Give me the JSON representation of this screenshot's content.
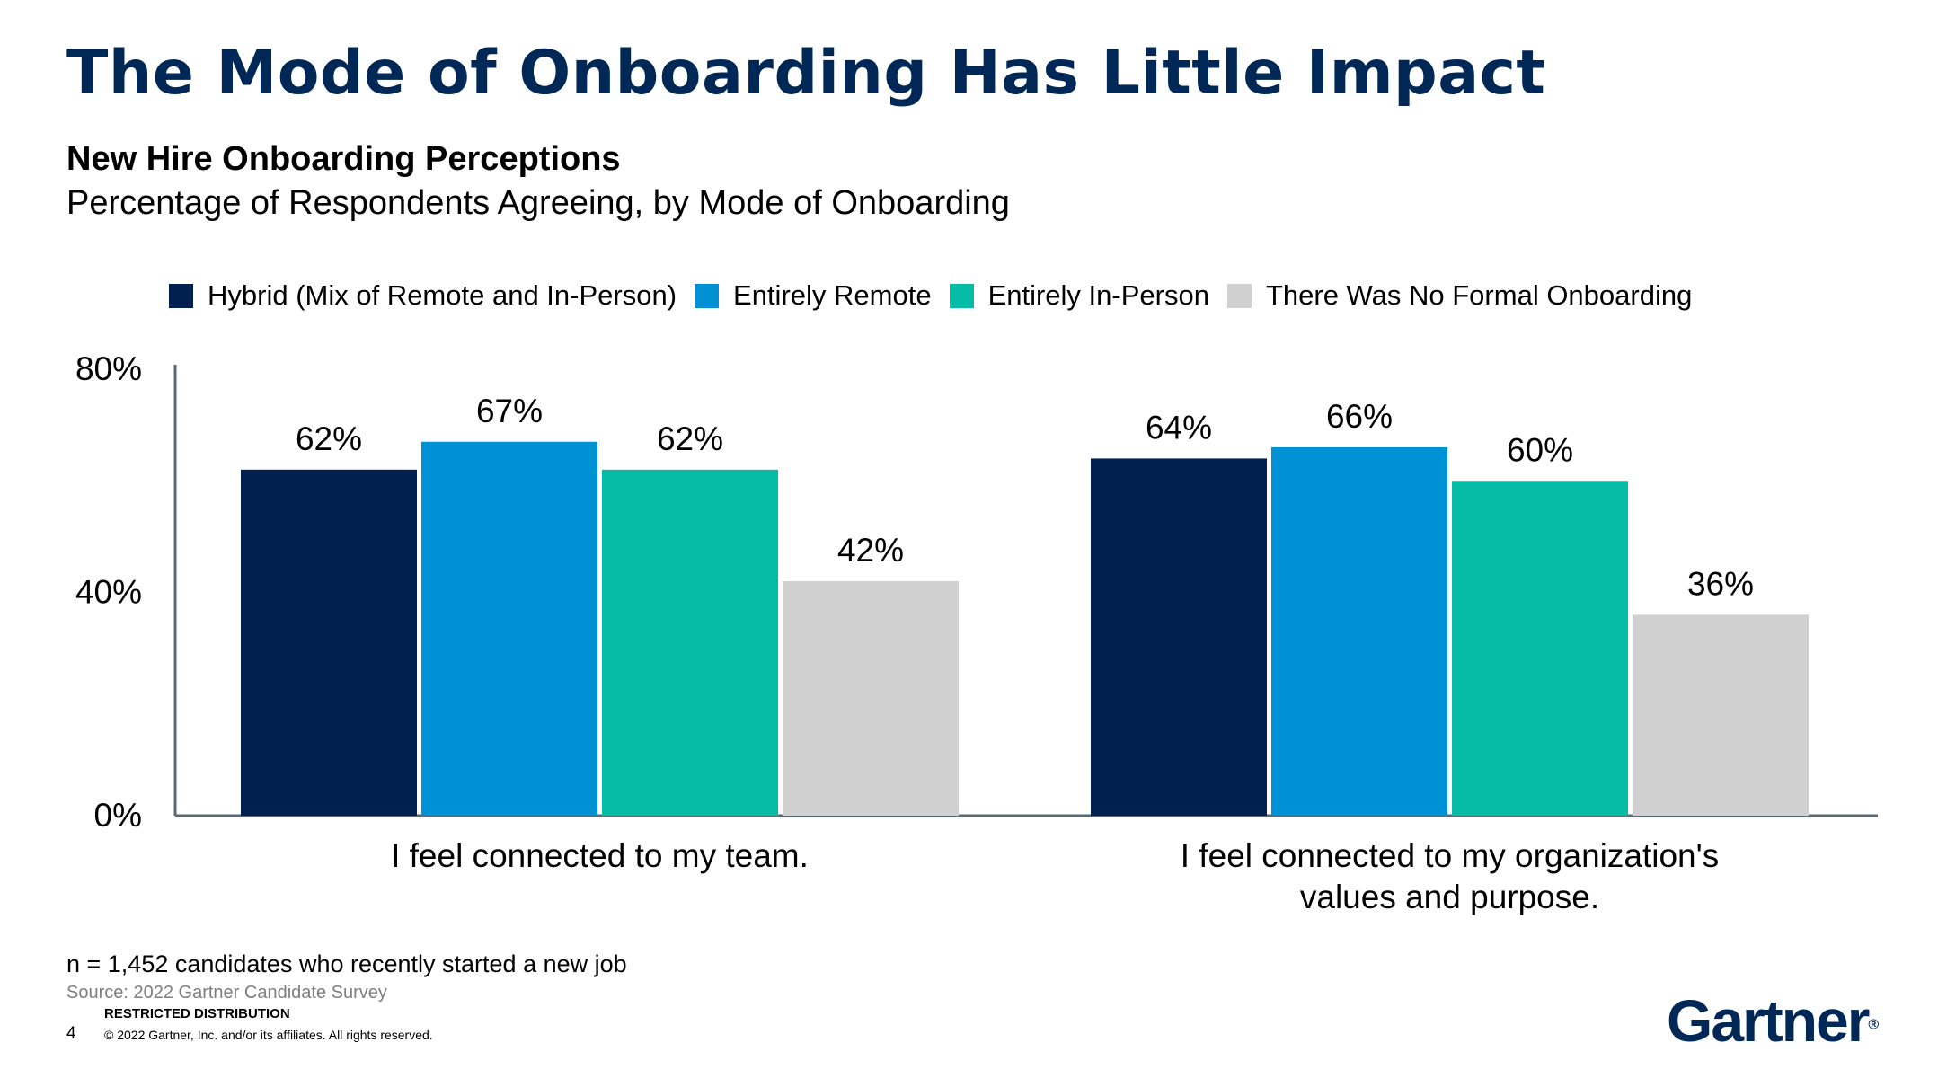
{
  "slide": {
    "title": "The Mode of Onboarding Has Little Impact",
    "subtitle": "New Hire Onboarding Perceptions",
    "subtitle2": "Percentage of Respondents Agreeing, by Mode of Onboarding"
  },
  "chart_data": {
    "type": "bar",
    "categories": [
      "I feel connected to my team.",
      "I feel connected to my organization's values and purpose."
    ],
    "category_lines": [
      [
        "I feel connected to my team."
      ],
      [
        "I feel connected to my organization's",
        "values and purpose."
      ]
    ],
    "series": [
      {
        "name": "Hybrid (Mix of Remote and In-Person)",
        "values": [
          62,
          64
        ],
        "labels": [
          "62%",
          "64%"
        ],
        "color": "#002050"
      },
      {
        "name": "Entirely Remote",
        "values": [
          67,
          66
        ],
        "labels": [
          "67%",
          "66%"
        ],
        "color": "#0090d4"
      },
      {
        "name": "Entirely In-Person",
        "values": [
          62,
          60
        ],
        "labels": [
          "62%",
          "60%"
        ],
        "color": "#07bca6"
      },
      {
        "name": "There Was No Formal Onboarding",
        "values": [
          42,
          36
        ],
        "labels": [
          "42%",
          "36%"
        ],
        "color": "#d0d0d0"
      }
    ],
    "ylim": [
      0,
      80
    ],
    "yticks": [
      0,
      40,
      80
    ],
    "ytick_labels": [
      "0%",
      "40%",
      "80%"
    ],
    "legend_position": "top",
    "grid": false
  },
  "footer": {
    "n_note": "n = 1,452 candidates who recently started a new job",
    "source": "Source: 2022 Gartner Candidate Survey",
    "restricted": "RESTRICTED DISTRIBUTION",
    "page": "4",
    "copyright": "© 2022 Gartner, Inc. and/or its affiliates. All rights reserved."
  },
  "logo": {
    "text": "Gartner",
    "mark": "®",
    "color": "#002856"
  }
}
